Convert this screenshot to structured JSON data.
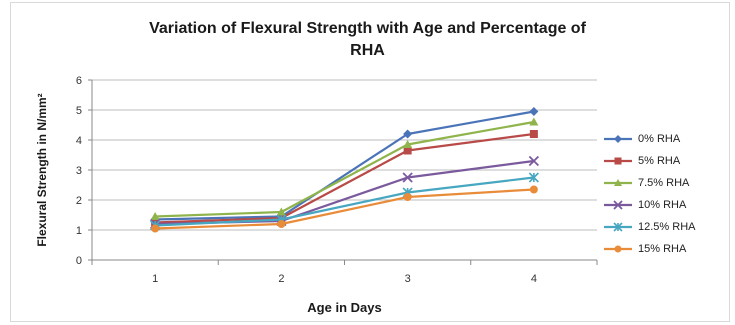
{
  "chart_data": {
    "type": "line",
    "title_line1": "Variation of Flexural Strength with Age and Percentage of",
    "title_line2": "RHA",
    "xlabel": "Age in Days",
    "ylabel": "Flexural Strength in N/mm²",
    "categories": [
      "1",
      "2",
      "3",
      "4"
    ],
    "ylim": [
      0,
      6
    ],
    "yticks": [
      "0",
      "1",
      "2",
      "3",
      "4",
      "5",
      "6"
    ],
    "grid": true,
    "legend_position": "right",
    "series": [
      {
        "name": "0% RHA",
        "color": "#4a74b7",
        "marker": "diamond",
        "values": [
          1.35,
          1.45,
          4.2,
          4.95
        ]
      },
      {
        "name": "5% RHA",
        "color": "#b84a47",
        "marker": "square",
        "values": [
          1.25,
          1.4,
          3.65,
          4.2
        ]
      },
      {
        "name": "7.5% RHA",
        "color": "#8fb44c",
        "marker": "triangle",
        "values": [
          1.45,
          1.6,
          3.85,
          4.6
        ]
      },
      {
        "name": "10% RHA",
        "color": "#7a5a9d",
        "marker": "x",
        "values": [
          1.2,
          1.3,
          2.75,
          3.3
        ]
      },
      {
        "name": "12.5% RHA",
        "color": "#47a7c1",
        "marker": "star",
        "values": [
          1.15,
          1.35,
          2.25,
          2.75
        ]
      },
      {
        "name": "15% RHA",
        "color": "#e98c3a",
        "marker": "circle",
        "values": [
          1.05,
          1.2,
          2.1,
          2.35
        ]
      }
    ]
  }
}
